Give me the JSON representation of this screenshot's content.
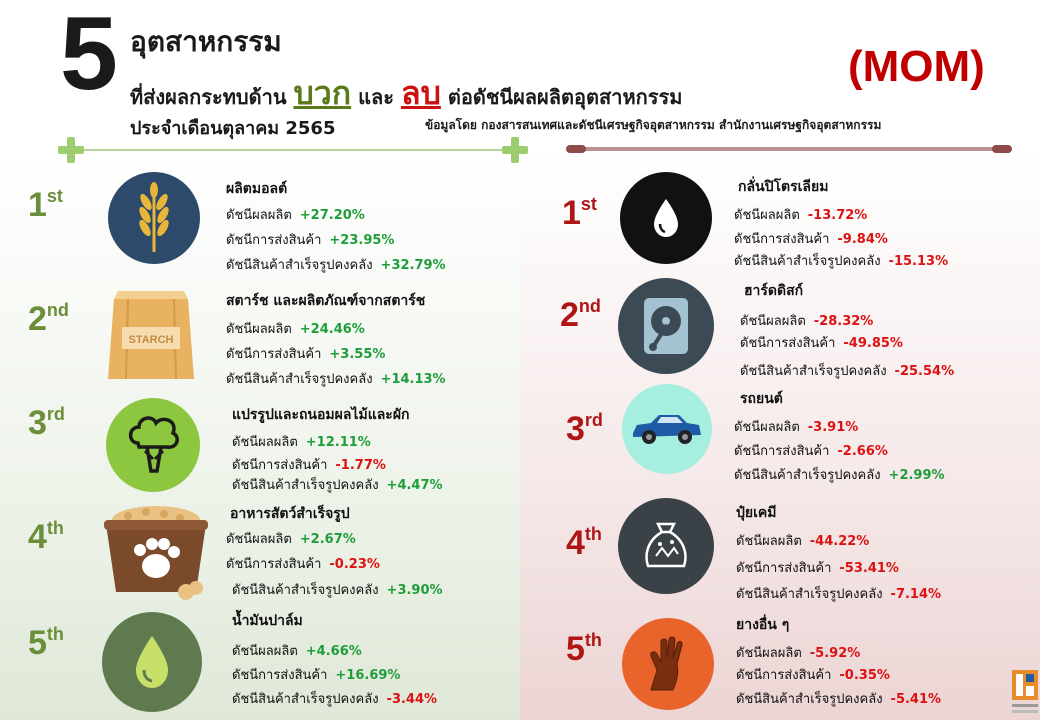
{
  "header": {
    "number": "5",
    "title_line1": "อุตสาหกรรม",
    "title_line2_prefix": "ที่ส่งผลกระทบด้าน",
    "positive_word": "บวก",
    "and_word": "และ",
    "negative_word": "ลบ",
    "title_line2_suffix": "ต่อดัชนีผลผลิตอุตสาหกรรม",
    "mom": "(MOM)",
    "month": "ประจำเดือนตุลาคม 2565",
    "source": "ข้อมูลโดย กองสารสนเทศและดัชนีเศรษฐกิจอุตสาหกรรม สำนักงานเศรษฐกิจอุตสาหกรรม"
  },
  "positive": [
    {
      "rank": "1",
      "suffix": "st",
      "name": "ผลิตมอลต์",
      "icon": "wheat-icon",
      "color": "#2d4a6b",
      "stats": [
        {
          "label": "ดัชนีผลผลิต",
          "value": "+27.20%"
        },
        {
          "label": "ดัชนีการส่งสินค้า",
          "value": "+23.95%"
        },
        {
          "label": "ดัชนีสินค้าสำเร็จรูปคงคลัง",
          "value": "+32.79%"
        }
      ]
    },
    {
      "rank": "2",
      "suffix": "nd",
      "name": "สตาร์ช และผลิตภัณฑ์จากสตาร์ช",
      "icon": "starch-bag-icon",
      "color": "#e8b260",
      "bag_label": "STARCH",
      "stats": [
        {
          "label": "ดัชนีผลผลิต",
          "value": "+24.46%"
        },
        {
          "label": "ดัชนีการส่งสินค้า",
          "value": "+3.55%"
        },
        {
          "label": "ดัชนีสินค้าสำเร็จรูปคงคลัง",
          "value": "+14.13%"
        }
      ]
    },
    {
      "rank": "3",
      "suffix": "rd",
      "name": "แปรรูปและถนอมผลไม้และผัก",
      "icon": "broccoli-icon",
      "color": "#8dc63f",
      "stats": [
        {
          "label": "ดัชนีผลผลิต",
          "value": "+12.11%"
        },
        {
          "label": "ดัชนีการส่งสินค้า",
          "value": "-1.77%"
        },
        {
          "label": "ดัชนีสินค้าสำเร็จรูปคงคลัง",
          "value": "+4.47%"
        }
      ]
    },
    {
      "rank": "4",
      "suffix": "th",
      "name": "อาหารสัตว์สำเร็จรูป",
      "icon": "pet-food-bowl-icon",
      "color": "#7a4a2a",
      "stats": [
        {
          "label": "ดัชนีผลผลิต",
          "value": "+2.67%"
        },
        {
          "label": "ดัชนีการส่งสินค้า",
          "value": "-0.23%"
        },
        {
          "label": "ดัชนีสินค้าสำเร็จรูปคงคลัง",
          "value": "+3.90%"
        }
      ]
    },
    {
      "rank": "5",
      "suffix": "th",
      "name": "น้ำมันปาล์ม",
      "icon": "oil-drop-icon",
      "color": "#5e7a4e",
      "stats": [
        {
          "label": "ดัชนีผลผลิต",
          "value": "+4.66%"
        },
        {
          "label": "ดัชนีการส่งสินค้า",
          "value": "+16.69%"
        },
        {
          "label": "ดัชนีสินค้าสำเร็จรูปคงคลัง",
          "value": "-3.44%"
        }
      ]
    }
  ],
  "negative": [
    {
      "rank": "1",
      "suffix": "st",
      "name": "กลั่นปิโตรเลียม",
      "icon": "petroleum-drop-icon",
      "color": "#111111",
      "stats": [
        {
          "label": "ดัชนีผลผลิต",
          "value": "-13.72%"
        },
        {
          "label": "ดัชนีการส่งสินค้า",
          "value": "-9.84%"
        },
        {
          "label": "ดัชนีสินค้าสำเร็จรูปคงคลัง",
          "value": "-15.13%"
        }
      ]
    },
    {
      "rank": "2",
      "suffix": "nd",
      "name": "ฮาร์ดดิสก์",
      "icon": "hard-disk-icon",
      "color": "#3c4a55",
      "stats": [
        {
          "label": "ดัชนีผลผลิต",
          "value": "-28.32%"
        },
        {
          "label": "ดัชนีการส่งสินค้า",
          "value": "-49.85%"
        },
        {
          "label": "ดัชนีสินค้าสำเร็จรูปคงคลัง",
          "value": "-25.54%"
        }
      ]
    },
    {
      "rank": "3",
      "suffix": "rd",
      "name": "รถยนต์",
      "icon": "car-icon",
      "color": "#a6eee0",
      "stats": [
        {
          "label": "ดัชนีผลผลิต",
          "value": "-3.91%"
        },
        {
          "label": "ดัชนีการส่งสินค้า",
          "value": "-2.66%"
        },
        {
          "label": "ดัชนีสินค้าสำเร็จรูปคงคลัง",
          "value": "+2.99%"
        }
      ]
    },
    {
      "rank": "4",
      "suffix": "th",
      "name": "ปุ๋ยเคมี",
      "icon": "fertilizer-bag-icon",
      "color": "#3a4248",
      "stats": [
        {
          "label": "ดัชนีผลผลิต",
          "value": "-44.22%"
        },
        {
          "label": "ดัชนีการส่งสินค้า",
          "value": "-53.41%"
        },
        {
          "label": "ดัชนีสินค้าสำเร็จรูปคงคลัง",
          "value": "-7.14%"
        }
      ]
    },
    {
      "rank": "5",
      "suffix": "th",
      "name": "ยางอื่น ๆ",
      "icon": "rubber-glove-icon",
      "color": "#e8642a",
      "stats": [
        {
          "label": "ดัชนีผลผลิต",
          "value": "-5.92%"
        },
        {
          "label": "ดัชนีการส่งสินค้า",
          "value": "-0.35%"
        },
        {
          "label": "ดัชนีสินค้าสำเร็จรูปคงคลัง",
          "value": "-5.41%"
        }
      ]
    }
  ]
}
